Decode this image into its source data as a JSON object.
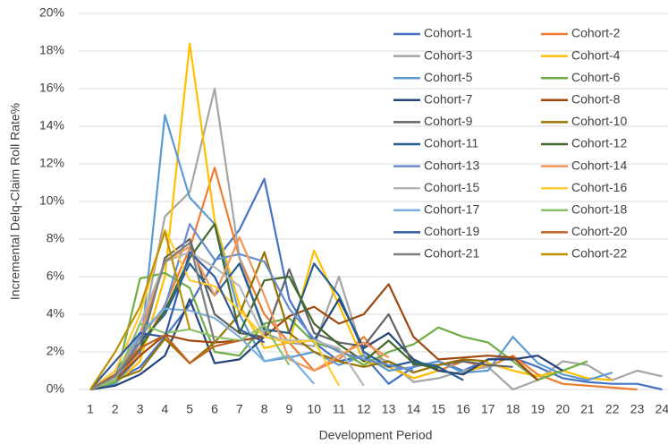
{
  "chart_data": {
    "type": "line",
    "x_label": "Development Period",
    "y_label": "Incremental Delq-Claim Roll Rate%",
    "x": [
      1,
      2,
      3,
      4,
      5,
      6,
      7,
      8,
      9,
      10,
      11,
      12,
      13,
      14,
      15,
      16,
      17,
      18,
      19,
      20,
      21,
      22,
      23,
      24
    ],
    "ylim": [
      0,
      20
    ],
    "yticks": [
      {
        "value": 0,
        "label": "0%"
      },
      {
        "value": 2,
        "label": "2%"
      },
      {
        "value": 4,
        "label": "4%"
      },
      {
        "value": 6,
        "label": "6%"
      },
      {
        "value": 8,
        "label": "8%"
      },
      {
        "value": 10,
        "label": "10%"
      },
      {
        "value": 12,
        "label": "12%"
      },
      {
        "value": 14,
        "label": "14%"
      },
      {
        "value": 16,
        "label": "16%"
      },
      {
        "value": 18,
        "label": "18%"
      },
      {
        "value": 20,
        "label": "20%"
      }
    ],
    "grid": true,
    "legend_position": "upper right",
    "series": [
      {
        "name": "Cohort-1",
        "color": "#4472C4",
        "values": [
          0,
          0.5,
          1.2,
          2.8,
          4.5,
          6.8,
          8.5,
          11.2,
          4.8,
          2.5,
          1.5,
          1.8,
          0.3,
          1.2,
          1.5,
          1.0,
          1.6,
          1.7,
          1.2,
          0.6,
          0.4,
          0.3,
          0.3,
          0
        ]
      },
      {
        "name": "Cohort-2",
        "color": "#ED7D31",
        "values": [
          0,
          0.6,
          2.0,
          4.5,
          7.5,
          11.8,
          7.0,
          4.0,
          2.5,
          1.0,
          1.6,
          2.8,
          1.2,
          0.6,
          1.0,
          1.5,
          1.2,
          1.8,
          0.8,
          0.3,
          0.2,
          0.1,
          0,
          null
        ]
      },
      {
        "name": "Cohort-3",
        "color": "#A5A5A5",
        "values": [
          0,
          0.4,
          2.5,
          9.2,
          10.5,
          16.0,
          7.0,
          3.0,
          2.5,
          2.3,
          6.0,
          1.8,
          1.5,
          0.4,
          0.6,
          1.0,
          1.2,
          0,
          0.5,
          1.5,
          1.3,
          0.5,
          1.0,
          0.7
        ]
      },
      {
        "name": "Cohort-4",
        "color": "#FFC000",
        "values": [
          0,
          0.3,
          1.5,
          6.0,
          18.4,
          9.0,
          4.5,
          2.2,
          2.5,
          7.4,
          4.5,
          1.5,
          1.2,
          0.6,
          1.0,
          0.8,
          1.4,
          1.0,
          0.7,
          1.0,
          0.6,
          0.5,
          null,
          null
        ]
      },
      {
        "name": "Cohort-5",
        "color": "#5B9BD5",
        "values": [
          0,
          0.3,
          1.8,
          14.6,
          10.2,
          8.8,
          4.0,
          1.5,
          1.7,
          2.0,
          1.3,
          1.8,
          1.0,
          1.2,
          1.5,
          0.9,
          1.0,
          2.8,
          1.4,
          0.8,
          0.5,
          0.9,
          null,
          null
        ]
      },
      {
        "name": "Cohort-6",
        "color": "#70AD47",
        "values": [
          0,
          0.4,
          5.9,
          6.2,
          5.4,
          2.0,
          1.8,
          3.5,
          3.8,
          2.5,
          2.1,
          1.3,
          2.0,
          2.4,
          3.3,
          2.8,
          2.5,
          1.5,
          0.5,
          1.0,
          1.5,
          null,
          null,
          null
        ]
      },
      {
        "name": "Cohort-7",
        "color": "#264478",
        "values": [
          0,
          0.2,
          0.8,
          1.8,
          4.8,
          1.4,
          1.6,
          2.8,
          2.5,
          2.6,
          4.8,
          2.2,
          3.0,
          1.6,
          1.0,
          0.8,
          1.6,
          1.6,
          1.8,
          1.0,
          null,
          null,
          null,
          null
        ]
      },
      {
        "name": "Cohort-8",
        "color": "#9E480E",
        "values": [
          0,
          0.5,
          1.8,
          2.9,
          2.6,
          2.5,
          2.6,
          2.8,
          3.9,
          4.4,
          3.5,
          4.0,
          5.6,
          2.8,
          1.6,
          1.7,
          1.8,
          1.7,
          0.5,
          null,
          null,
          null,
          null,
          null
        ]
      },
      {
        "name": "Cohort-9",
        "color": "#636363",
        "values": [
          0,
          0.7,
          2.1,
          7.0,
          8.0,
          4.0,
          3.0,
          2.8,
          6.4,
          3.0,
          2.5,
          2.3,
          4.0,
          1.3,
          1.3,
          1.5,
          1.3,
          1.2,
          null,
          null,
          null,
          null,
          null,
          null
        ]
      },
      {
        "name": "Cohort-10",
        "color": "#997300",
        "values": [
          0,
          0.5,
          1.0,
          2.7,
          1.4,
          2.5,
          4.0,
          7.3,
          3.0,
          2.0,
          1.5,
          1.2,
          1.5,
          0.9,
          1.3,
          1.6,
          1.5,
          null,
          null,
          null,
          null,
          null,
          null,
          null
        ]
      },
      {
        "name": "Cohort-11",
        "color": "#255E91",
        "values": [
          0,
          1.0,
          2.5,
          4.0,
          6.7,
          5.0,
          6.7,
          3.2,
          3.0,
          6.7,
          5.0,
          2.0,
          1.2,
          1.5,
          1.2,
          0.5,
          null,
          null,
          null,
          null,
          null,
          null,
          null,
          null
        ]
      },
      {
        "name": "Cohort-12",
        "color": "#43682B",
        "values": [
          0,
          0.8,
          2.2,
          4.2,
          7.0,
          8.8,
          3.0,
          5.8,
          6.0,
          3.5,
          2.4,
          1.5,
          2.6,
          1.4,
          1.1,
          null,
          null,
          null,
          null,
          null,
          null,
          null,
          null,
          null
        ]
      },
      {
        "name": "Cohort-13",
        "color": "#698ED0",
        "values": [
          0,
          0.5,
          2.8,
          4.4,
          8.8,
          6.9,
          7.2,
          6.8,
          4.3,
          2.7,
          2.0,
          1.6,
          1.3,
          1.0,
          null,
          null,
          null,
          null,
          null,
          null,
          null,
          null,
          null,
          null
        ]
      },
      {
        "name": "Cohort-14",
        "color": "#F1975A",
        "values": [
          0,
          0.6,
          3.0,
          6.8,
          7.6,
          5.0,
          8.1,
          5.0,
          1.6,
          1.0,
          1.8,
          2.5,
          1.7,
          null,
          null,
          null,
          null,
          null,
          null,
          null,
          null,
          null,
          null,
          null
        ]
      },
      {
        "name": "Cohort-15",
        "color": "#B7B7B7",
        "values": [
          0,
          0.6,
          3.5,
          6.8,
          7.3,
          6.5,
          5.5,
          2.8,
          2.6,
          2.6,
          2.2,
          0.2,
          null,
          null,
          null,
          null,
          null,
          null,
          null,
          null,
          null,
          null,
          null,
          null
        ]
      },
      {
        "name": "Cohort-16",
        "color": "#FFCD33",
        "values": [
          0,
          1.0,
          4.0,
          8.5,
          5.8,
          5.5,
          4.2,
          2.8,
          2.5,
          2.6,
          0.2,
          null,
          null,
          null,
          null,
          null,
          null,
          null,
          null,
          null,
          null,
          null,
          null,
          null
        ]
      },
      {
        "name": "Cohort-17",
        "color": "#7CAFDD",
        "values": [
          0,
          0.8,
          3.0,
          4.3,
          4.2,
          3.8,
          2.8,
          1.5,
          1.8,
          0.3,
          null,
          null,
          null,
          null,
          null,
          null,
          null,
          null,
          null,
          null,
          null,
          null,
          null,
          null
        ]
      },
      {
        "name": "Cohort-18",
        "color": "#8CC168",
        "values": [
          0,
          0.5,
          3.5,
          3.0,
          3.2,
          2.8,
          2.6,
          3.4,
          1.3,
          null,
          null,
          null,
          null,
          null,
          null,
          null,
          null,
          null,
          null,
          null,
          null,
          null,
          null,
          null
        ]
      },
      {
        "name": "Cohort-19",
        "color": "#335AA1",
        "values": [
          0,
          1.5,
          3.0,
          2.8,
          7.3,
          6.0,
          3.2,
          2.5,
          null,
          null,
          null,
          null,
          null,
          null,
          null,
          null,
          null,
          null,
          null,
          null,
          null,
          null,
          null,
          null
        ]
      },
      {
        "name": "Cohort-20",
        "color": "#BD6424",
        "values": [
          0,
          0.8,
          2.2,
          2.9,
          1.4,
          2.3,
          2.6,
          null,
          null,
          null,
          null,
          null,
          null,
          null,
          null,
          null,
          null,
          null,
          null,
          null,
          null,
          null,
          null,
          null
        ]
      },
      {
        "name": "Cohort-21",
        "color": "#7E7E7E",
        "values": [
          0,
          0.7,
          2.5,
          6.8,
          7.8,
          2.5,
          null,
          null,
          null,
          null,
          null,
          null,
          null,
          null,
          null,
          null,
          null,
          null,
          null,
          null,
          null,
          null,
          null,
          null
        ]
      },
      {
        "name": "Cohort-22",
        "color": "#BF9000",
        "values": [
          0,
          2.0,
          4.4,
          8.4,
          3.2,
          null,
          null,
          null,
          null,
          null,
          null,
          null,
          null,
          null,
          null,
          null,
          null,
          null,
          null,
          null,
          null,
          null,
          null,
          null
        ]
      }
    ]
  }
}
